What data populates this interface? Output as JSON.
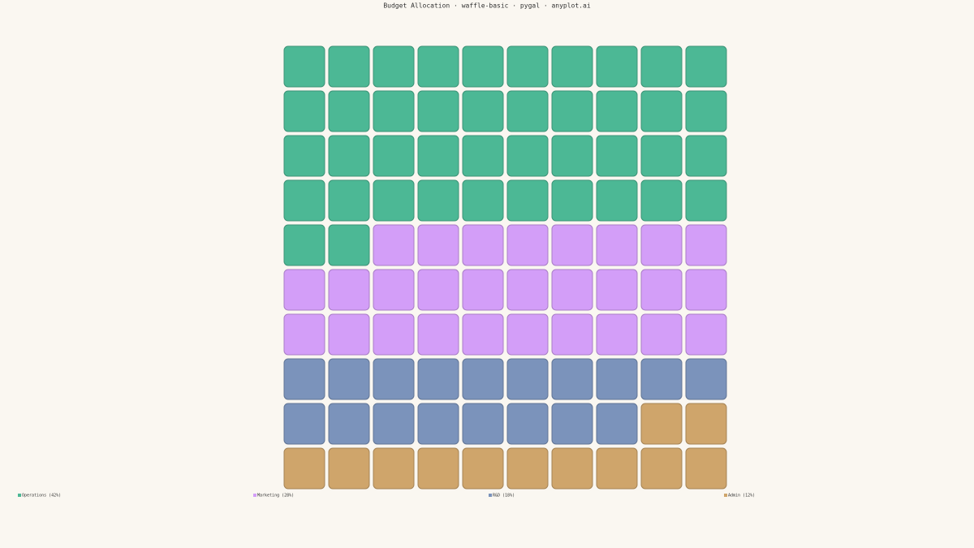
{
  "chart_data": {
    "type": "waffle",
    "title": "Budget Allocation · waffle-basic · pygal · anyplot.ai",
    "series": [
      {
        "name": "Operations (42%)",
        "color": "#4cb895",
        "values": [
          42
        ]
      },
      {
        "name": "Marketing (28%)",
        "color": "#d39ef8",
        "values": [
          28
        ]
      },
      {
        "name": "R&D (18%)",
        "color": "#7b93bb",
        "values": [
          18
        ]
      },
      {
        "name": "Admin (12%)",
        "color": "#cfa56b",
        "values": [
          12
        ]
      }
    ]
  }
}
